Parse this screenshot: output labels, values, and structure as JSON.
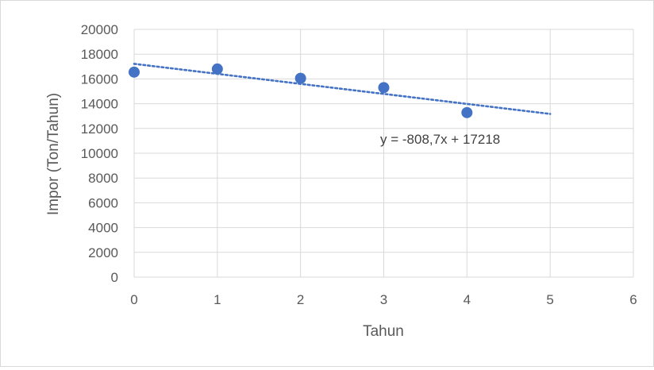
{
  "chart_data": {
    "type": "scatter",
    "title": "",
    "xlabel": "Tahun",
    "ylabel": "Impor (Ton/Tahun)",
    "xlim": [
      0,
      6
    ],
    "ylim": [
      0,
      20000
    ],
    "x_ticks": [
      0,
      1,
      2,
      3,
      4,
      5,
      6
    ],
    "y_ticks": [
      0,
      2000,
      4000,
      6000,
      8000,
      10000,
      12000,
      14000,
      16000,
      18000,
      20000
    ],
    "grid": true,
    "legend": "none",
    "series": [
      {
        "x": [
          0,
          1,
          2,
          3,
          4
        ],
        "y": [
          16550,
          16800,
          16050,
          15300,
          13280
        ],
        "color": "#4472c4"
      }
    ],
    "trendline": {
      "kind": "linear",
      "slope": -808.7,
      "intercept": 17218,
      "x_range": [
        0,
        5
      ],
      "style": "dotted",
      "color": "#4472c4",
      "equation_label": "y = -808,7x + 17218"
    }
  }
}
